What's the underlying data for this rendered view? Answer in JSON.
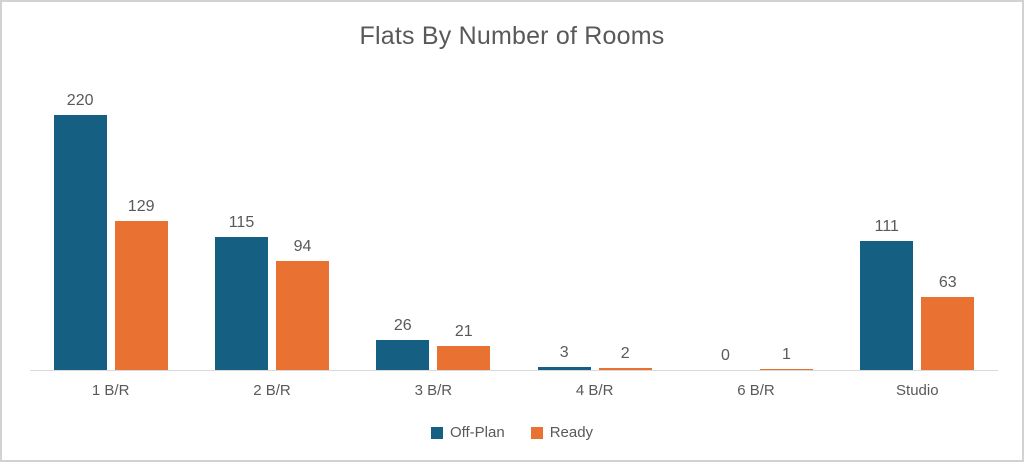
{
  "chart": {
    "title": "Flats By Number of Rooms"
  },
  "colors": {
    "offplan": "#156082",
    "ready": "#E97132",
    "axis_line": "#d9d9d9",
    "text": "#595959"
  },
  "legend": {
    "items": [
      {
        "label": "Off-Plan",
        "color": "#156082"
      },
      {
        "label": "Ready",
        "color": "#E97132"
      }
    ]
  },
  "chart_data": {
    "type": "bar",
    "title": "Flats By Number of Rooms",
    "categories": [
      "1 B/R",
      "2 B/R",
      "3 B/R",
      "4 B/R",
      "6 B/R",
      "Studio"
    ],
    "series": [
      {
        "name": "Off-Plan",
        "color": "#156082",
        "values": [
          220,
          115,
          26,
          3,
          0,
          111
        ]
      },
      {
        "name": "Ready",
        "color": "#E97132",
        "values": [
          129,
          94,
          21,
          2,
          1,
          63
        ]
      }
    ],
    "xlabel": "",
    "ylabel": "",
    "ylim": [
      0,
      240
    ],
    "grid": false,
    "data_labels": true,
    "legend_position": "bottom"
  }
}
